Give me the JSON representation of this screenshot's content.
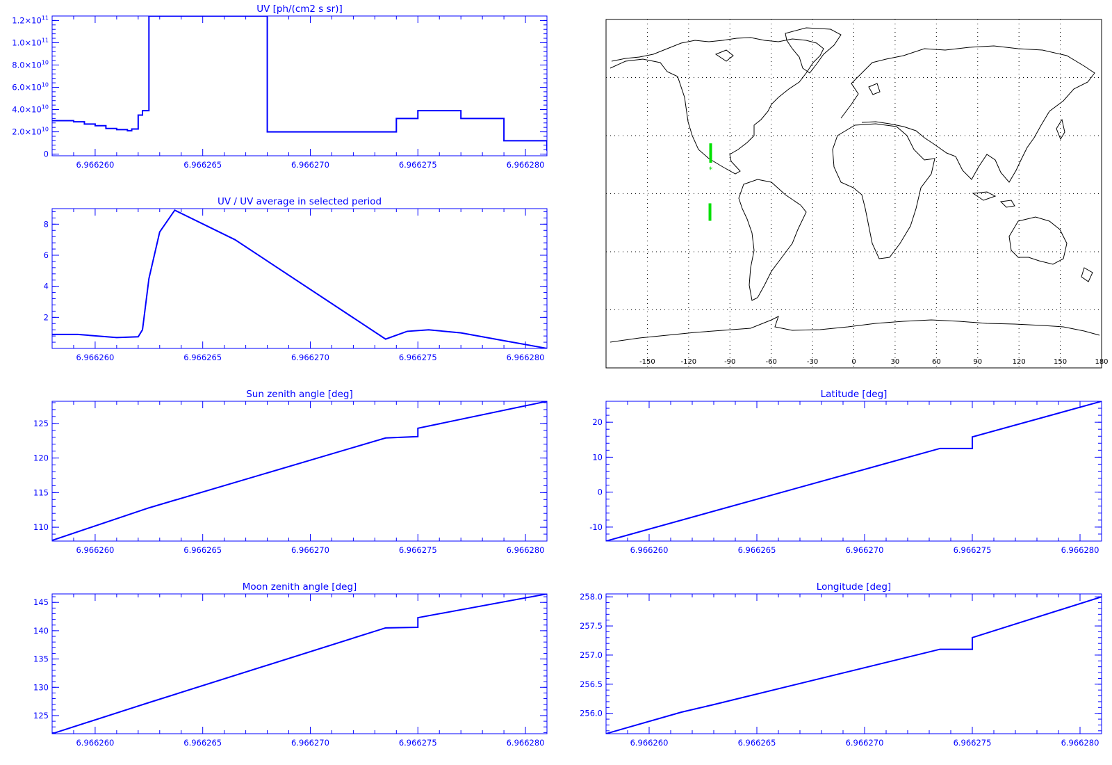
{
  "colors": {
    "axes": "#0000ff",
    "map_frame": "#000000",
    "track": "#00e000",
    "grid": "#000000"
  },
  "chart_data": [
    {
      "id": "uv",
      "type": "line",
      "title": "UV [ph/(cm2 s sr)]",
      "xlim": [
        6.966258,
        6.966281
      ],
      "ylim": [
        -1500000000.0,
        124000000000.0
      ],
      "step": true,
      "x_ticks": [
        "6.966260",
        "6.966265",
        "6.966270",
        "6.966275",
        "6.966280"
      ],
      "x_tick_values": [
        6.96626,
        6.966265,
        6.96627,
        6.966275,
        6.96628
      ],
      "y_ticks": [
        {
          "value": 0,
          "mant": "0",
          "exp": ""
        },
        {
          "value": 20000000000.0,
          "mant": "2.0×10",
          "exp": "10"
        },
        {
          "value": 40000000000.0,
          "mant": "4.0×10",
          "exp": "10"
        },
        {
          "value": 60000000000.0,
          "mant": "6.0×10",
          "exp": "10"
        },
        {
          "value": 80000000000.0,
          "mant": "8.0×10",
          "exp": "10"
        },
        {
          "value": 100000000000.0,
          "mant": "1.0×10",
          "exp": "11"
        },
        {
          "value": 120000000000.0,
          "mant": "1.2×10",
          "exp": "11"
        }
      ],
      "x": [
        6.966258,
        6.9662585,
        6.966259,
        6.9662595,
        6.96626,
        6.9662605,
        6.966261,
        6.9662615,
        6.9662617,
        6.966262,
        6.9662622,
        6.9662625,
        6.966268,
        6.966268,
        6.966273,
        6.966274,
        6.966275,
        6.9662755,
        6.966277,
        6.966279,
        6.966281
      ],
      "y": [
        30000000000.0,
        30000000000.0,
        29000000000.0,
        27000000000.0,
        25500000000.0,
        23000000000.0,
        22000000000.0,
        21000000000.0,
        22500000000.0,
        35000000000.0,
        39000000000.0,
        124000000000.0,
        124000000000.0,
        20000000000.0,
        20000000000.0,
        32000000000.0,
        39000000000.0,
        39000000000.0,
        32000000000.0,
        12000000000.0,
        3000000000.0
      ]
    },
    {
      "id": "uv_ratio",
      "type": "line",
      "title": "UV / UV average in selected period",
      "xlim": [
        6.966258,
        6.966281
      ],
      "ylim": [
        0,
        9
      ],
      "x_ticks": [
        "6.966260",
        "6.966265",
        "6.966270",
        "6.966275",
        "6.966280"
      ],
      "x_tick_values": [
        6.96626,
        6.966265,
        6.96627,
        6.966275,
        6.96628
      ],
      "y_ticks": [
        {
          "value": 2,
          "mant": "2",
          "exp": ""
        },
        {
          "value": 4,
          "mant": "4",
          "exp": ""
        },
        {
          "value": 6,
          "mant": "6",
          "exp": ""
        },
        {
          "value": 8,
          "mant": "8",
          "exp": ""
        }
      ],
      "x": [
        6.966258,
        6.9662592,
        6.966261,
        6.966262,
        6.9662622,
        6.9662625,
        6.966263,
        6.9662637,
        6.9662665,
        6.9662735,
        6.9662745,
        6.9662755,
        6.966277,
        6.966279,
        6.966281
      ],
      "y": [
        0.9,
        0.9,
        0.7,
        0.75,
        1.2,
        4.5,
        7.5,
        8.9,
        7.0,
        0.6,
        1.1,
        1.2,
        1.0,
        0.5,
        0.0
      ]
    },
    {
      "id": "sun_zenith",
      "type": "line",
      "title": "Sun zenith angle [deg]",
      "xlim": [
        6.966258,
        6.966281
      ],
      "ylim": [
        108,
        128.2
      ],
      "x_ticks": [
        "6.966260",
        "6.966265",
        "6.966270",
        "6.966275",
        "6.966280"
      ],
      "x_tick_values": [
        6.96626,
        6.966265,
        6.96627,
        6.966275,
        6.96628
      ],
      "y_ticks": [
        {
          "value": 110,
          "mant": "110",
          "exp": ""
        },
        {
          "value": 115,
          "mant": "115",
          "exp": ""
        },
        {
          "value": 120,
          "mant": "120",
          "exp": ""
        },
        {
          "value": 125,
          "mant": "125",
          "exp": ""
        }
      ],
      "x": [
        6.966258,
        6.9662625,
        6.9662735,
        6.966275,
        6.966275,
        6.966281
      ],
      "y": [
        108.1,
        112.8,
        122.9,
        123.1,
        124.3,
        128.2
      ]
    },
    {
      "id": "latitude",
      "type": "line",
      "title": "Latitude [deg]",
      "xlim": [
        6.966258,
        6.966281
      ],
      "ylim": [
        -14,
        26
      ],
      "x_ticks": [
        "6.966260",
        "6.966265",
        "6.966270",
        "6.966275",
        "6.966280"
      ],
      "x_tick_values": [
        6.96626,
        6.966265,
        6.96627,
        6.966275,
        6.96628
      ],
      "y_ticks": [
        {
          "value": -10,
          "mant": "-10",
          "exp": ""
        },
        {
          "value": 0,
          "mant": "0",
          "exp": ""
        },
        {
          "value": 10,
          "mant": "10",
          "exp": ""
        },
        {
          "value": 20,
          "mant": "20",
          "exp": ""
        }
      ],
      "x": [
        6.966258,
        6.9662735,
        6.966275,
        6.966275,
        6.966281
      ],
      "y": [
        -14,
        12.5,
        12.5,
        15.8,
        26
      ]
    },
    {
      "id": "moon_zenith",
      "type": "line",
      "title": "Moon zenith angle [deg]",
      "xlim": [
        6.966258,
        6.966281
      ],
      "ylim": [
        121.8,
        146.5
      ],
      "x_ticks": [
        "6.966260",
        "6.966265",
        "6.966270",
        "6.966275",
        "6.966280"
      ],
      "x_tick_values": [
        6.96626,
        6.966265,
        6.96627,
        6.966275,
        6.96628
      ],
      "y_ticks": [
        {
          "value": 125,
          "mant": "125",
          "exp": ""
        },
        {
          "value": 130,
          "mant": "130",
          "exp": ""
        },
        {
          "value": 135,
          "mant": "135",
          "exp": ""
        },
        {
          "value": 140,
          "mant": "140",
          "exp": ""
        },
        {
          "value": 145,
          "mant": "145",
          "exp": ""
        }
      ],
      "x": [
        6.966258,
        6.9662625,
        6.9662735,
        6.966275,
        6.966275,
        6.966281
      ],
      "y": [
        121.8,
        127.3,
        140.5,
        140.6,
        142.3,
        146.5
      ]
    },
    {
      "id": "longitude",
      "type": "line",
      "title": "Longitude [deg]",
      "xlim": [
        6.966258,
        6.966281
      ],
      "ylim": [
        255.65,
        258.05
      ],
      "x_ticks": [
        "6.966260",
        "6.966265",
        "6.966270",
        "6.966275",
        "6.966280"
      ],
      "x_tick_values": [
        6.96626,
        6.966265,
        6.96627,
        6.966275,
        6.96628
      ],
      "y_ticks": [
        {
          "value": 256.0,
          "mant": "256.0",
          "exp": ""
        },
        {
          "value": 256.5,
          "mant": "256.5",
          "exp": ""
        },
        {
          "value": 257.0,
          "mant": "257.0",
          "exp": ""
        },
        {
          "value": 257.5,
          "mant": "257.5",
          "exp": ""
        },
        {
          "value": 258.0,
          "mant": "258.0",
          "exp": ""
        }
      ],
      "x": [
        6.966258,
        6.9662615,
        6.966263,
        6.9662735,
        6.966275,
        6.966275,
        6.966281
      ],
      "y": [
        255.65,
        256.02,
        256.15,
        257.1,
        257.1,
        257.3,
        258.0
      ]
    },
    {
      "id": "ground_track_map",
      "type": "scatter",
      "title": "",
      "xlim": [
        -180,
        180
      ],
      "ylim": [
        -90,
        90
      ],
      "x_tick_labels": [
        "-150",
        "-120",
        "-90",
        "-60",
        "-30",
        "0",
        "30",
        "60",
        "90",
        "120",
        "150",
        "180"
      ],
      "x_tick_values": [
        -150,
        -120,
        -90,
        -60,
        -30,
        0,
        30,
        60,
        90,
        120,
        150,
        180
      ],
      "grid_lon": [
        -150,
        -120,
        -90,
        -60,
        -30,
        0,
        30,
        60,
        90,
        120,
        150
      ],
      "grid_lat": [
        -60,
        -30,
        0,
        30,
        60
      ],
      "grid": true,
      "track_segments": [
        {
          "x": [
            -104,
            -104
          ],
          "y": [
            16,
            26
          ]
        },
        {
          "x": [
            -104.5,
            -104.5
          ],
          "y": [
            -5,
            -14
          ]
        }
      ],
      "star": {
        "x": -104,
        "y": 12.5,
        "symbol": "*"
      }
    }
  ]
}
